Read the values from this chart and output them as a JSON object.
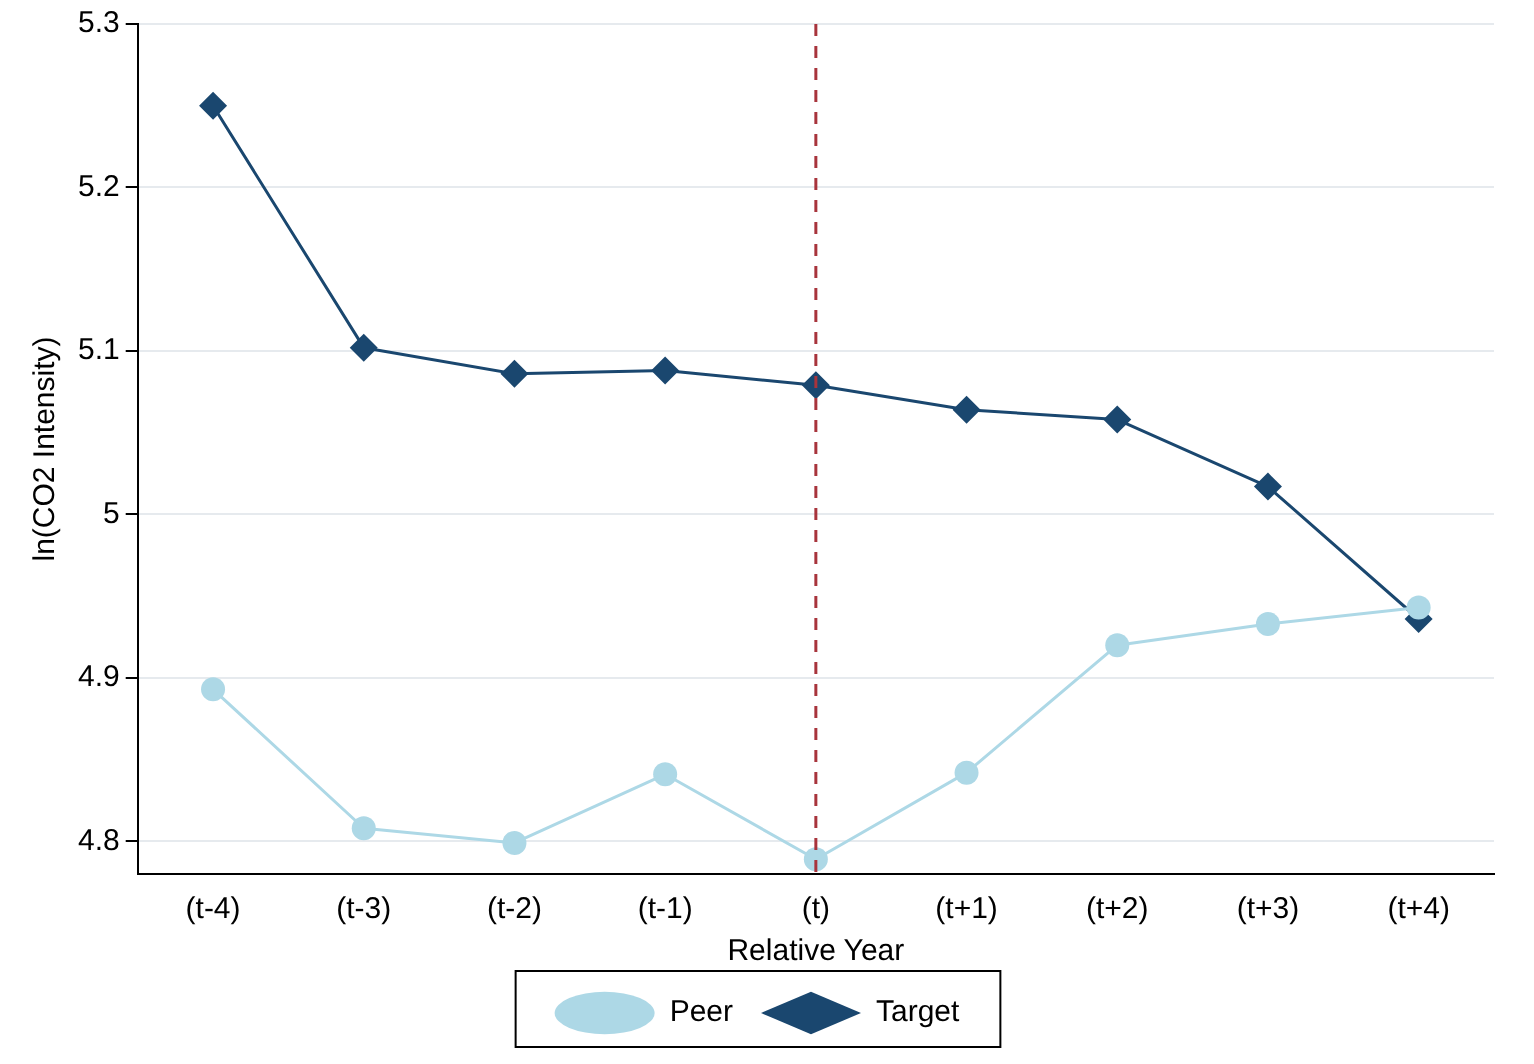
{
  "chart_data": {
    "type": "line",
    "xlabel": "Relative Year",
    "ylabel": "ln(CO2 Intensity)",
    "categories": [
      "(t-4)",
      "(t-3)",
      "(t-2)",
      "(t-1)",
      "(t)",
      "(t+1)",
      "(t+2)",
      "(t+3)",
      "(t+4)"
    ],
    "series": [
      {
        "name": "Peer",
        "color": "#add8e6",
        "marker": "circle",
        "values": [
          4.893,
          4.808,
          4.799,
          4.841,
          4.789,
          4.842,
          4.92,
          4.933,
          4.943
        ]
      },
      {
        "name": "Target",
        "color": "#1a476f",
        "marker": "diamond",
        "values": [
          5.25,
          5.102,
          5.086,
          5.088,
          5.079,
          5.064,
          5.058,
          5.017,
          4.936
        ]
      }
    ],
    "ylim": [
      4.78,
      5.3
    ],
    "yticks": [
      4.8,
      4.9,
      5,
      5.1,
      5.2,
      5.3
    ],
    "grid": "y",
    "legend": "bottom",
    "line_style": "solid",
    "ref_lines": [
      {
        "axis": "x",
        "value": "(t)",
        "color": "#a8343c",
        "line_style": "dashed"
      }
    ]
  }
}
